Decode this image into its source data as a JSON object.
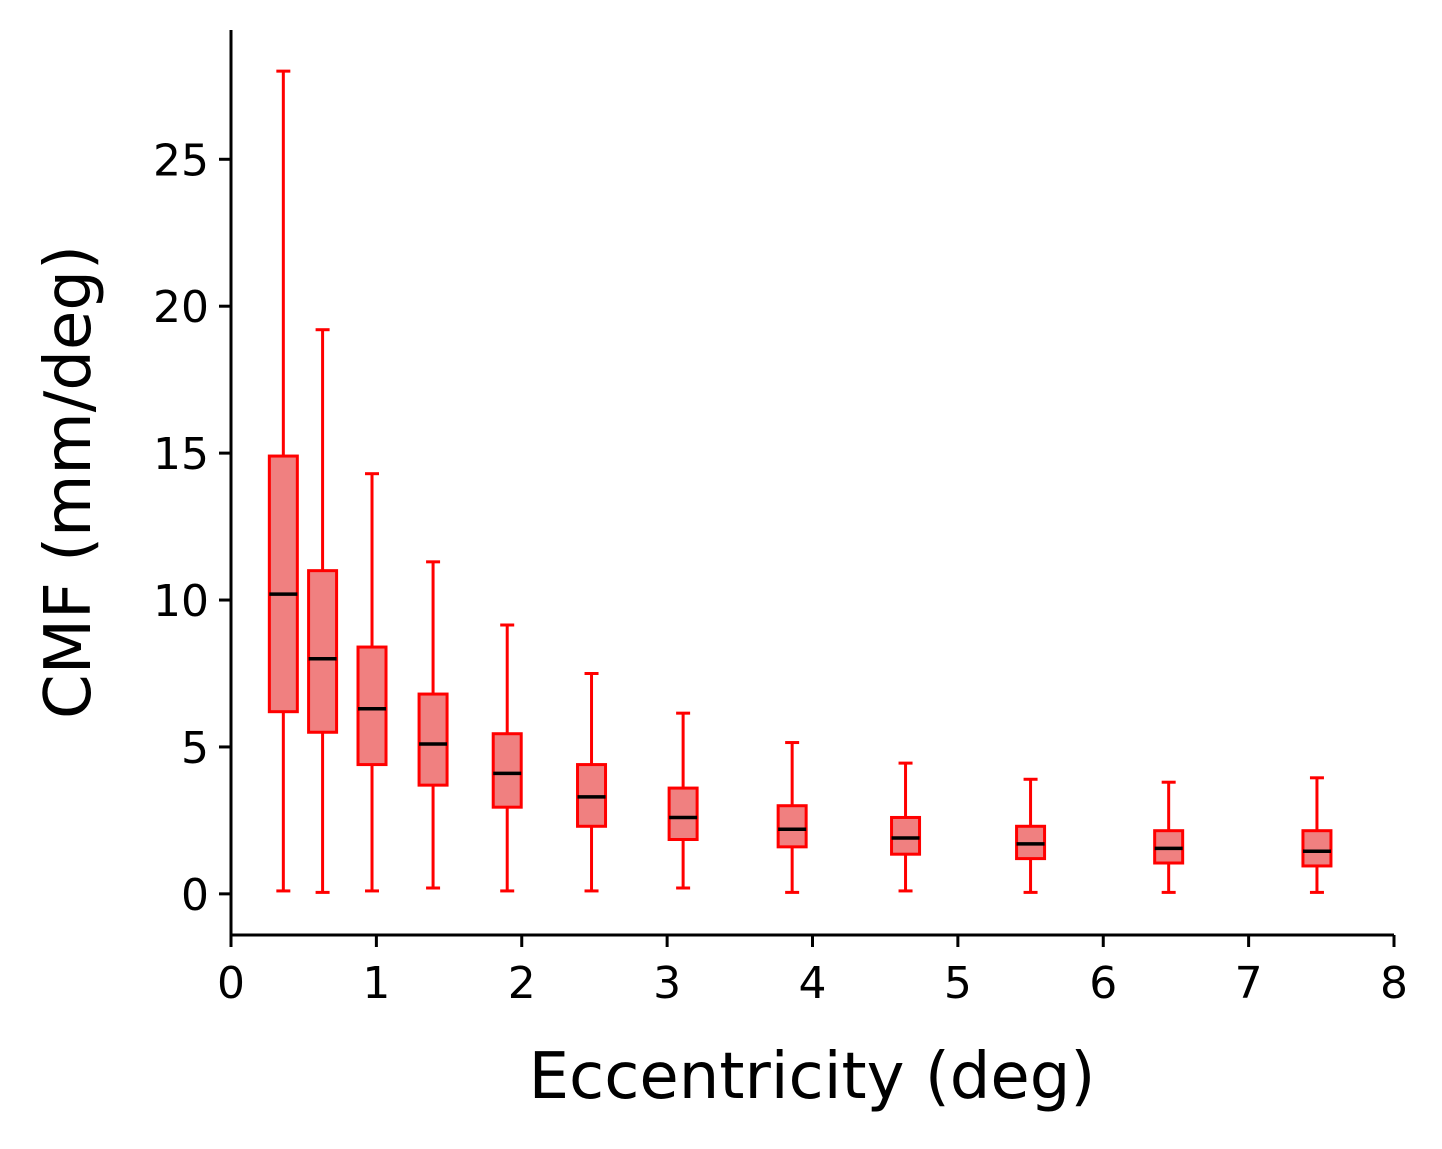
{
  "chart_data": {
    "type": "box",
    "xlabel": "Eccentricity (deg)",
    "ylabel": "CMF (mm/deg)",
    "xlim": [
      0,
      8
    ],
    "ylim": [
      -1.4,
      29.4
    ],
    "xticks": [
      0,
      1,
      2,
      3,
      4,
      5,
      6,
      7,
      8
    ],
    "yticks": [
      0,
      5,
      10,
      15,
      20,
      25
    ],
    "grid": false,
    "legend": "none",
    "colors": {
      "box_edge": "#ff0000",
      "box_fill": "#f08080",
      "median": "#000000",
      "axis": "#000000"
    },
    "boxes": [
      {
        "x": 0.36,
        "whisker_low": 0.1,
        "q1": 6.2,
        "median": 10.2,
        "q3": 14.9,
        "whisker_high": 28.0
      },
      {
        "x": 0.63,
        "whisker_low": 0.05,
        "q1": 5.5,
        "median": 8.0,
        "q3": 11.0,
        "whisker_high": 19.2
      },
      {
        "x": 0.97,
        "whisker_low": 0.1,
        "q1": 4.4,
        "median": 6.3,
        "q3": 8.4,
        "whisker_high": 14.3
      },
      {
        "x": 1.39,
        "whisker_low": 0.2,
        "q1": 3.7,
        "median": 5.1,
        "q3": 6.8,
        "whisker_high": 11.3
      },
      {
        "x": 1.9,
        "whisker_low": 0.1,
        "q1": 2.95,
        "median": 4.1,
        "q3": 5.45,
        "whisker_high": 9.15
      },
      {
        "x": 2.48,
        "whisker_low": 0.1,
        "q1": 2.3,
        "median": 3.3,
        "q3": 4.4,
        "whisker_high": 7.5
      },
      {
        "x": 3.11,
        "whisker_low": 0.2,
        "q1": 1.85,
        "median": 2.6,
        "q3": 3.6,
        "whisker_high": 6.15
      },
      {
        "x": 3.86,
        "whisker_low": 0.05,
        "q1": 1.6,
        "median": 2.2,
        "q3": 3.0,
        "whisker_high": 5.15
      },
      {
        "x": 4.64,
        "whisker_low": 0.1,
        "q1": 1.35,
        "median": 1.9,
        "q3": 2.6,
        "whisker_high": 4.45
      },
      {
        "x": 5.5,
        "whisker_low": 0.05,
        "q1": 1.2,
        "median": 1.7,
        "q3": 2.3,
        "whisker_high": 3.9
      },
      {
        "x": 6.45,
        "whisker_low": 0.05,
        "q1": 1.05,
        "median": 1.55,
        "q3": 2.15,
        "whisker_high": 3.8
      },
      {
        "x": 7.47,
        "whisker_low": 0.05,
        "q1": 0.95,
        "median": 1.45,
        "q3": 2.15,
        "whisker_high": 3.95
      }
    ]
  }
}
